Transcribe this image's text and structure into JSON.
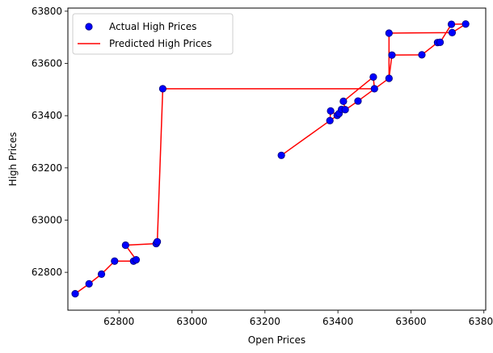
{
  "chart_data": {
    "type": "scatter",
    "title": "",
    "xlabel": "Open Prices",
    "ylabel": "High Prices",
    "xlim": [
      62660,
      63805
    ],
    "ylim": [
      62655,
      63812
    ],
    "xticks": [
      62800,
      63000,
      63200,
      63400,
      63600,
      63800
    ],
    "yticks": [
      62800,
      63000,
      63200,
      63400,
      63600,
      63800
    ],
    "grid": false,
    "legend_position": "top-left",
    "series": [
      {
        "name": "Actual High Prices",
        "kind": "scatter",
        "color": "#0000ff",
        "edge_color": "#00007a",
        "points": [
          [
            62680,
            62718
          ],
          [
            62718,
            62756
          ],
          [
            62752,
            62793
          ],
          [
            62788,
            62843
          ],
          [
            62818,
            62904
          ],
          [
            62840,
            62843
          ],
          [
            62847,
            62848
          ],
          [
            62902,
            62910
          ],
          [
            62905,
            62917
          ],
          [
            62920,
            63503
          ],
          [
            63245,
            63248
          ],
          [
            63378,
            63381
          ],
          [
            63380,
            63418
          ],
          [
            63398,
            63401
          ],
          [
            63403,
            63408
          ],
          [
            63410,
            63424
          ],
          [
            63415,
            63455
          ],
          [
            63420,
            63423
          ],
          [
            63455,
            63456
          ],
          [
            63497,
            63548
          ],
          [
            63500,
            63503
          ],
          [
            63540,
            63543
          ],
          [
            63540,
            63716
          ],
          [
            63548,
            63632
          ],
          [
            63630,
            63633
          ],
          [
            63673,
            63680
          ],
          [
            63680,
            63681
          ],
          [
            63711,
            63750
          ],
          [
            63713,
            63718
          ],
          [
            63750,
            63751
          ]
        ]
      },
      {
        "name": "Predicted High Prices",
        "kind": "line",
        "color": "#ff0000",
        "points": [
          [
            62680,
            62718
          ],
          [
            62718,
            62756
          ],
          [
            62752,
            62793
          ],
          [
            62788,
            62843
          ],
          [
            62840,
            62843
          ],
          [
            62847,
            62848
          ],
          [
            62818,
            62904
          ],
          [
            62902,
            62910
          ],
          [
            62905,
            62917
          ],
          [
            62920,
            63503
          ],
          [
            63500,
            63503
          ],
          [
            63497,
            63548
          ],
          [
            63415,
            63455
          ],
          [
            63420,
            63423
          ],
          [
            63410,
            63424
          ],
          [
            63403,
            63408
          ],
          [
            63398,
            63401
          ],
          [
            63380,
            63418
          ],
          [
            63378,
            63381
          ],
          [
            63245,
            63248
          ],
          [
            63378,
            63381
          ],
          [
            63455,
            63456
          ],
          [
            63540,
            63543
          ],
          [
            63540,
            63716
          ],
          [
            63713,
            63718
          ],
          [
            63750,
            63751
          ],
          [
            63711,
            63750
          ],
          [
            63680,
            63681
          ],
          [
            63673,
            63680
          ],
          [
            63630,
            63633
          ],
          [
            63548,
            63632
          ],
          [
            63540,
            63543
          ]
        ]
      }
    ]
  }
}
